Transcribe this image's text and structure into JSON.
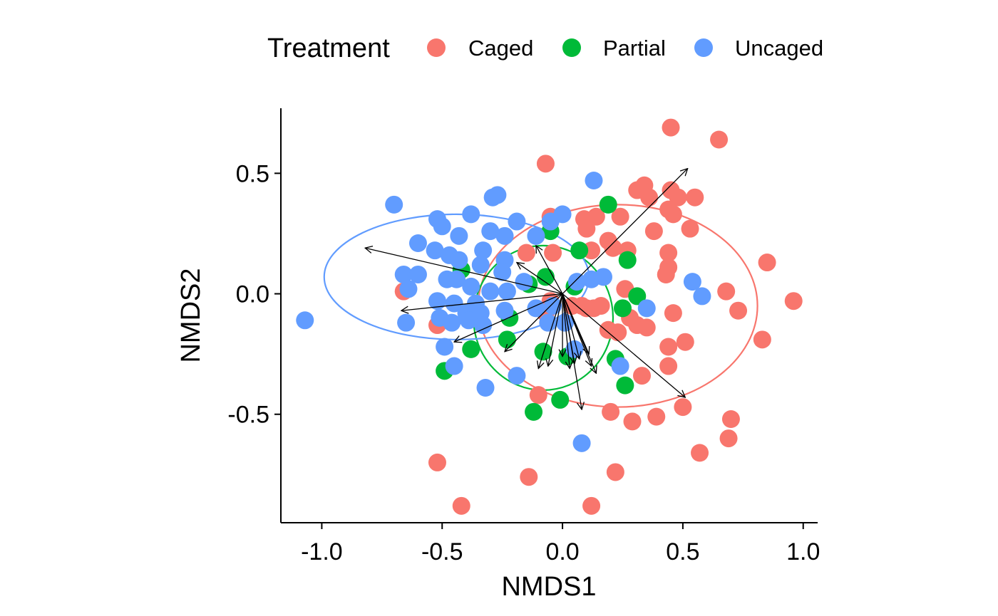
{
  "chart_data": {
    "type": "scatter",
    "title": "",
    "xlabel": "NMDS1",
    "ylabel": "NMDS2",
    "xlim": [
      -1.17,
      1.06
    ],
    "ylim": [
      -0.95,
      0.77
    ],
    "x_ticks": [
      -1.0,
      -0.5,
      0.0,
      0.5,
      1.0
    ],
    "x_tick_labels": [
      "-1.0",
      "-0.5",
      "0.0",
      "0.5",
      "1.0"
    ],
    "y_ticks": [
      -0.5,
      0.0,
      0.5
    ],
    "y_tick_labels": [
      "-0.5",
      "0.0",
      "0.5"
    ],
    "grid": false,
    "legend": {
      "title": "Treatment",
      "position": "top"
    },
    "series": [
      {
        "name": "Caged",
        "color": "#F8766D",
        "ellipse": {
          "cx": 0.23,
          "cy": -0.05,
          "rx": 0.58,
          "ry": 0.42
        },
        "points": [
          [
            -0.07,
            0.54
          ],
          [
            0.45,
            0.69
          ],
          [
            0.65,
            0.64
          ],
          [
            0.31,
            0.43
          ],
          [
            0.34,
            0.45
          ],
          [
            0.45,
            0.43
          ],
          [
            0.55,
            0.4
          ],
          [
            0.48,
            0.4
          ],
          [
            0.36,
            0.4
          ],
          [
            0.44,
            0.35
          ],
          [
            0.46,
            0.33
          ],
          [
            0.24,
            0.32
          ],
          [
            0.14,
            0.32
          ],
          [
            0.09,
            0.31
          ],
          [
            -0.05,
            0.32
          ],
          [
            0.53,
            0.27
          ],
          [
            0.38,
            0.26
          ],
          [
            0.1,
            0.27
          ],
          [
            0.19,
            0.22
          ],
          [
            0.21,
            0.19
          ],
          [
            0.27,
            0.18
          ],
          [
            0.44,
            0.17
          ],
          [
            0.44,
            0.11
          ],
          [
            0.85,
            0.13
          ],
          [
            -0.15,
            0.17
          ],
          [
            -0.04,
            0.17
          ],
          [
            0.12,
            0.18
          ],
          [
            -0.66,
            0.01
          ],
          [
            0.68,
            0.01
          ],
          [
            0.73,
            -0.07
          ],
          [
            0.96,
            -0.03
          ],
          [
            0.04,
            -0.05
          ],
          [
            0.08,
            -0.05
          ],
          [
            0.1,
            -0.06
          ],
          [
            0.13,
            -0.06
          ],
          [
            0.16,
            -0.05
          ],
          [
            0.26,
            0.02
          ],
          [
            0.28,
            -0.1
          ],
          [
            0.46,
            -0.08
          ],
          [
            -0.07,
            -0.08
          ],
          [
            -0.05,
            -0.03
          ],
          [
            0.19,
            -0.15
          ],
          [
            0.23,
            -0.16
          ],
          [
            0.31,
            -0.13
          ],
          [
            0.35,
            -0.14
          ],
          [
            0.44,
            -0.22
          ],
          [
            0.51,
            -0.2
          ],
          [
            0.83,
            -0.19
          ],
          [
            0.44,
            -0.3
          ],
          [
            0.33,
            -0.34
          ],
          [
            -0.52,
            -0.13
          ],
          [
            -0.1,
            -0.42
          ],
          [
            0.2,
            -0.49
          ],
          [
            0.29,
            -0.53
          ],
          [
            0.39,
            -0.51
          ],
          [
            0.5,
            -0.47
          ],
          [
            0.7,
            -0.52
          ],
          [
            0.69,
            -0.6
          ],
          [
            0.57,
            -0.66
          ],
          [
            -0.52,
            -0.7
          ],
          [
            -0.42,
            -0.88
          ],
          [
            -0.14,
            -0.76
          ],
          [
            0.22,
            -0.74
          ],
          [
            0.12,
            -0.88
          ],
          [
            0.43,
            0.08
          ]
        ]
      },
      {
        "name": "Partial",
        "color": "#00BA38",
        "ellipse": {
          "cx": -0.08,
          "cy": -0.1,
          "rx": 0.29,
          "ry": 0.3
        },
        "points": [
          [
            0.19,
            0.37
          ],
          [
            -0.05,
            0.26
          ],
          [
            0.07,
            0.18
          ],
          [
            0.27,
            0.14
          ],
          [
            -0.42,
            0.1
          ],
          [
            -0.07,
            0.07
          ],
          [
            -0.14,
            0.04
          ],
          [
            0.05,
            0.03
          ],
          [
            0.31,
            -0.01
          ],
          [
            0.25,
            -0.06
          ],
          [
            -0.22,
            -0.1
          ],
          [
            -0.23,
            -0.19
          ],
          [
            -0.38,
            -0.23
          ],
          [
            -0.49,
            -0.32
          ],
          [
            -0.08,
            -0.24
          ],
          [
            0.02,
            -0.26
          ],
          [
            0.22,
            -0.27
          ],
          [
            0.26,
            -0.38
          ],
          [
            -0.01,
            -0.44
          ],
          [
            -0.12,
            -0.49
          ]
        ]
      },
      {
        "name": "Uncaged",
        "color": "#619CFF",
        "ellipse": {
          "cx": -0.44,
          "cy": 0.07,
          "rx": 0.55,
          "ry": 0.26
        },
        "points": [
          [
            -0.7,
            0.37
          ],
          [
            -0.52,
            0.31
          ],
          [
            -0.5,
            0.28
          ],
          [
            -0.6,
            0.21
          ],
          [
            -0.53,
            0.18
          ],
          [
            -0.43,
            0.24
          ],
          [
            -0.38,
            0.33
          ],
          [
            -0.29,
            0.4
          ],
          [
            -0.27,
            0.41
          ],
          [
            -0.3,
            0.26
          ],
          [
            -0.24,
            0.24
          ],
          [
            -0.19,
            0.3
          ],
          [
            -0.11,
            0.24
          ],
          [
            0.0,
            0.33
          ],
          [
            -0.05,
            0.3
          ],
          [
            0.13,
            0.47
          ],
          [
            -0.47,
            0.16
          ],
          [
            -0.43,
            0.14
          ],
          [
            -0.33,
            0.18
          ],
          [
            -0.34,
            0.12
          ],
          [
            -0.24,
            0.14
          ],
          [
            -0.25,
            0.09
          ],
          [
            -0.16,
            0.05
          ],
          [
            -0.66,
            0.08
          ],
          [
            -0.6,
            0.08
          ],
          [
            -0.48,
            0.06
          ],
          [
            -0.44,
            0.06
          ],
          [
            -0.38,
            0.03
          ],
          [
            -0.3,
            0.01
          ],
          [
            -0.23,
            0.01
          ],
          [
            -0.64,
            0.02
          ],
          [
            -0.52,
            -0.03
          ],
          [
            -0.45,
            -0.04
          ],
          [
            -0.36,
            -0.04
          ],
          [
            -0.4,
            -0.08
          ],
          [
            -0.34,
            -0.08
          ],
          [
            -0.24,
            -0.07
          ],
          [
            -0.11,
            -0.06
          ],
          [
            -0.04,
            -0.05
          ],
          [
            -0.51,
            -0.1
          ],
          [
            -0.65,
            -0.12
          ],
          [
            -0.46,
            -0.12
          ],
          [
            -0.39,
            -0.11
          ],
          [
            -0.33,
            -0.13
          ],
          [
            -0.06,
            -0.12
          ],
          [
            0.01,
            -0.12
          ],
          [
            -1.07,
            -0.11
          ],
          [
            0.54,
            0.05
          ],
          [
            0.58,
            -0.01
          ],
          [
            0.35,
            -0.06
          ],
          [
            0.12,
            0.06
          ],
          [
            0.17,
            0.07
          ],
          [
            0.06,
            0.05
          ],
          [
            -0.49,
            -0.22
          ],
          [
            -0.45,
            -0.3
          ],
          [
            0.05,
            -0.23
          ],
          [
            0.24,
            -0.3
          ],
          [
            -0.19,
            -0.34
          ],
          [
            -0.32,
            -0.39
          ],
          [
            0.08,
            -0.62
          ]
        ]
      }
    ],
    "arrows": [
      [
        0.52,
        0.52
      ],
      [
        -0.82,
        0.19
      ],
      [
        -0.67,
        -0.07
      ],
      [
        -0.45,
        -0.2
      ],
      [
        -0.19,
        0.13
      ],
      [
        -0.11,
        0.2
      ],
      [
        0.51,
        -0.43
      ],
      [
        -0.24,
        -0.24
      ],
      [
        -0.1,
        -0.31
      ],
      [
        0.08,
        -0.48
      ],
      [
        0.03,
        -0.31
      ],
      [
        0.14,
        -0.33
      ],
      [
        0.0,
        -0.26
      ],
      [
        -0.06,
        -0.3
      ],
      [
        0.07,
        -0.27
      ],
      [
        0.12,
        -0.3
      ],
      [
        0.05,
        -0.29
      ],
      [
        0.11,
        -0.25
      ]
    ]
  }
}
